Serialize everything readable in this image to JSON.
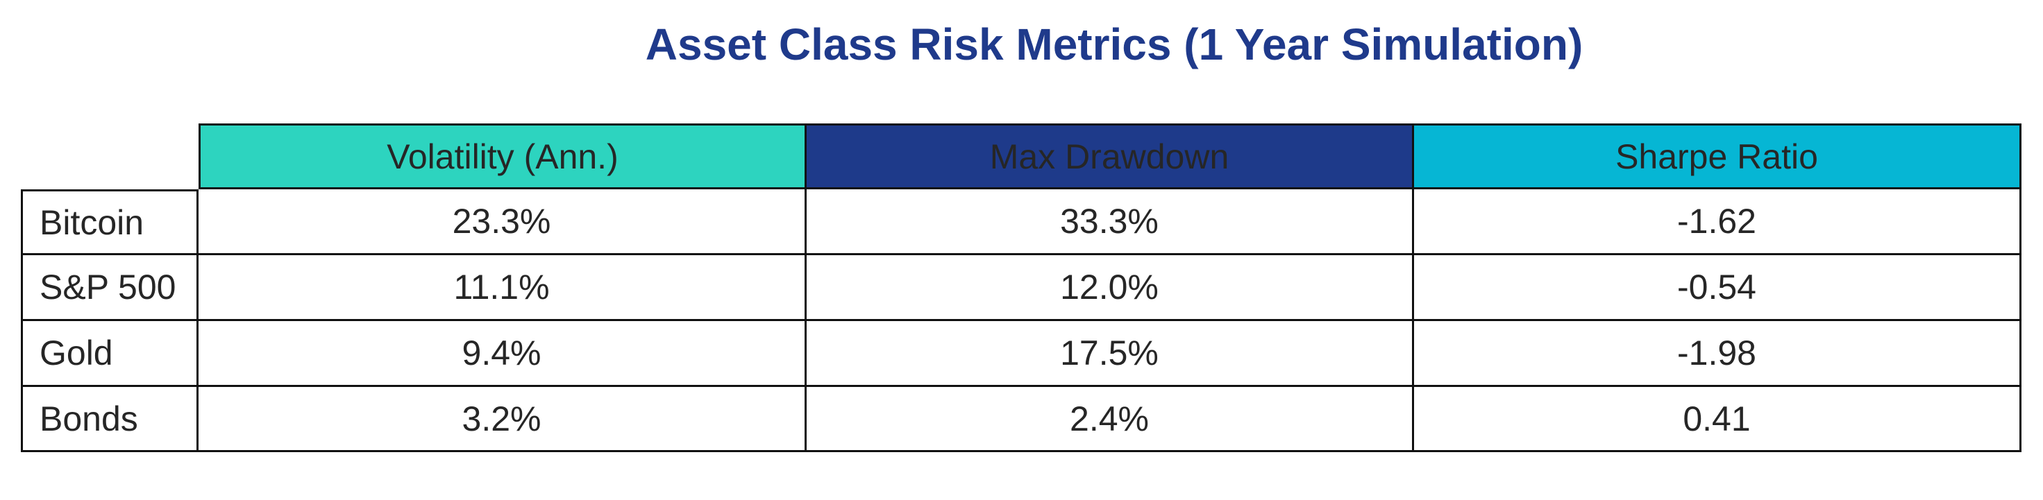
{
  "chart_data": {
    "type": "table",
    "title": "Asset Class Risk Metrics (1 Year Simulation)",
    "columns": [
      {
        "label": "Volatility (Ann.)",
        "header_color": "#2dd4bf"
      },
      {
        "label": "Max Drawdown",
        "header_color": "#1e3a8a"
      },
      {
        "label": "Sharpe Ratio",
        "header_color": "#06b6d4"
      }
    ],
    "rows": [
      {
        "label": "Bitcoin",
        "values": [
          "23.3%",
          "33.3%",
          "-1.62"
        ]
      },
      {
        "label": "S&P 500",
        "values": [
          "11.1%",
          "12.0%",
          "-0.54"
        ]
      },
      {
        "label": "Gold",
        "values": [
          "9.4%",
          "17.5%",
          "-1.98"
        ]
      },
      {
        "label": "Bonds",
        "values": [
          "3.2%",
          "2.4%",
          "0.41"
        ]
      }
    ],
    "text_color": "#262626",
    "title_color": "#1f3a8b",
    "border_color": "#111111"
  }
}
